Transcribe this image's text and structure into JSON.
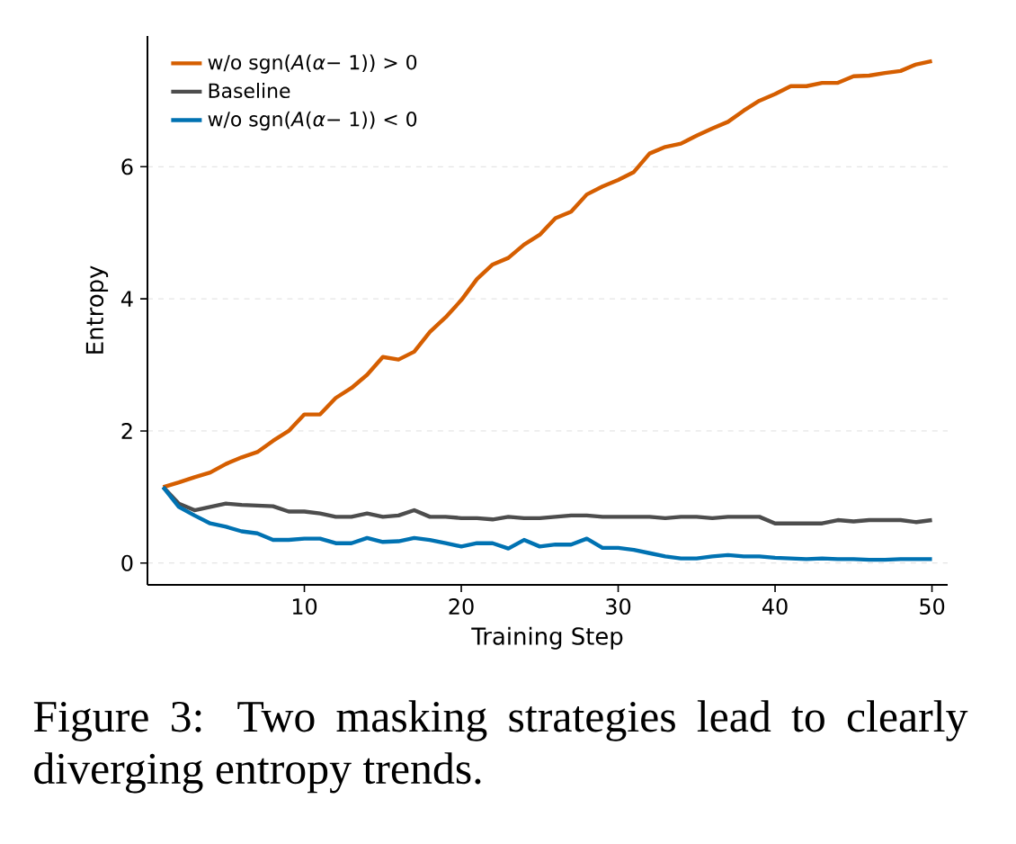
{
  "chart_data": {
    "type": "line",
    "xlabel": "Training Step",
    "ylabel": "Entropy",
    "x": [
      1,
      2,
      3,
      4,
      5,
      6,
      7,
      8,
      9,
      10,
      11,
      12,
      13,
      14,
      15,
      16,
      17,
      18,
      19,
      20,
      21,
      22,
      23,
      24,
      25,
      26,
      27,
      28,
      29,
      30,
      31,
      32,
      33,
      34,
      35,
      36,
      37,
      38,
      39,
      40,
      41,
      42,
      43,
      44,
      45,
      46,
      47,
      48,
      49,
      50
    ],
    "series": [
      {
        "name": "w/o sgn(*A*(*α*− 1)) > 0",
        "color": "#d55e00",
        "values": [
          1.15,
          1.22,
          1.3,
          1.37,
          1.5,
          1.6,
          1.68,
          1.85,
          2.0,
          2.25,
          2.25,
          2.5,
          2.65,
          2.85,
          3.12,
          3.08,
          3.2,
          3.5,
          3.72,
          3.98,
          4.3,
          4.52,
          4.62,
          4.82,
          4.97,
          5.22,
          5.32,
          5.58,
          5.7,
          5.8,
          5.92,
          6.2,
          6.3,
          6.35,
          6.47,
          6.58,
          6.68,
          6.85,
          7.0,
          7.1,
          7.22,
          7.22,
          7.27,
          7.27,
          7.37,
          7.38,
          7.42,
          7.45,
          7.55,
          7.6
        ]
      },
      {
        "name": "Baseline",
        "color": "#4d4d4d",
        "values": [
          1.15,
          0.9,
          0.8,
          0.85,
          0.9,
          0.88,
          0.87,
          0.86,
          0.78,
          0.78,
          0.75,
          0.7,
          0.7,
          0.75,
          0.7,
          0.72,
          0.8,
          0.7,
          0.7,
          0.68,
          0.68,
          0.66,
          0.7,
          0.68,
          0.68,
          0.7,
          0.72,
          0.72,
          0.7,
          0.7,
          0.7,
          0.7,
          0.68,
          0.7,
          0.7,
          0.68,
          0.7,
          0.7,
          0.7,
          0.6,
          0.6,
          0.6,
          0.6,
          0.65,
          0.63,
          0.65,
          0.65,
          0.65,
          0.62,
          0.65
        ]
      },
      {
        "name": "w/o sgn(*A*(*α*− 1)) < 0",
        "color": "#0072b2",
        "values": [
          1.15,
          0.85,
          0.72,
          0.6,
          0.55,
          0.48,
          0.45,
          0.35,
          0.35,
          0.37,
          0.37,
          0.3,
          0.3,
          0.38,
          0.32,
          0.33,
          0.38,
          0.35,
          0.3,
          0.25,
          0.3,
          0.3,
          0.22,
          0.35,
          0.25,
          0.28,
          0.28,
          0.37,
          0.23,
          0.23,
          0.2,
          0.15,
          0.1,
          0.07,
          0.07,
          0.1,
          0.12,
          0.1,
          0.1,
          0.08,
          0.07,
          0.06,
          0.07,
          0.06,
          0.06,
          0.05,
          0.05,
          0.06,
          0.06,
          0.06
        ]
      }
    ],
    "xlim": [
      0,
      51
    ],
    "ylim": [
      -0.33,
      7.98
    ],
    "xticks": [
      10,
      20,
      30,
      40,
      50
    ],
    "yticks": [
      0,
      2,
      4,
      6
    ],
    "grid": "y",
    "legend": "top left",
    "marker": "none",
    "line_style": "solid",
    "annotations": [
      "Figure 3: Two masking strategies lead to clearly diverging entropy trends."
    ]
  }
}
